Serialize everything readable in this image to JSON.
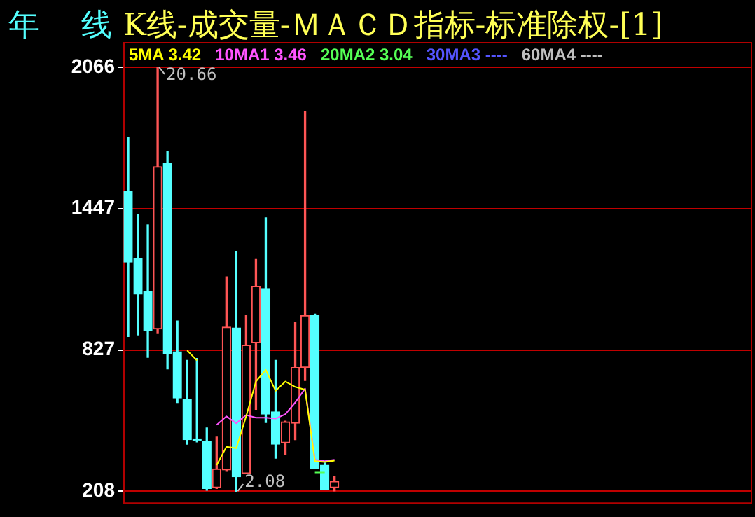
{
  "chart_data": {
    "type": "candlestick",
    "title": "年　线",
    "subtitle": "K线-成交量-ＭＡＣＤ指标-标准除权-[1]",
    "categories": [
      null,
      null,
      null,
      null,
      null,
      null,
      null,
      null,
      null,
      null,
      null,
      null,
      null,
      null,
      null,
      null,
      null,
      null,
      null,
      null,
      null,
      null,
      null,
      null,
      null,
      null,
      null,
      null,
      null,
      null,
      null,
      null,
      null,
      null,
      null,
      null,
      null,
      null,
      null,
      null,
      null,
      null,
      null,
      null,
      null,
      null,
      null,
      null,
      null,
      null,
      null,
      null,
      null,
      null,
      null,
      null,
      null,
      null,
      null,
      null,
      null,
      null,
      null,
      null
    ],
    "ohlc": [
      [
        1520,
        1759,
        886,
        1212
      ],
      [
        1229,
        1422,
        893,
        1072
      ],
      [
        1082,
        1375,
        795,
        913
      ],
      [
        919,
        2066,
        899,
        1630
      ],
      [
        1644,
        1697,
        744,
        809
      ],
      [
        819,
        954,
        597,
        617
      ],
      [
        611,
        781,
        414,
        434
      ],
      [
        438,
        790,
        424,
        430
      ],
      [
        428,
        485,
        212,
        220
      ],
      [
        224,
        445,
        220,
        306
      ],
      [
        301,
        1147,
        295,
        927
      ],
      [
        923,
        1259,
        208,
        271
      ],
      [
        286,
        978,
        286,
        848
      ],
      [
        858,
        1223,
        567,
        1106
      ],
      [
        1096,
        1406,
        509,
        546
      ],
      [
        556,
        781,
        353,
        414
      ],
      [
        420,
        515,
        367,
        512
      ],
      [
        506,
        948,
        434,
        750
      ],
      [
        750,
        1870,
        693,
        978
      ],
      [
        978,
        984,
        306,
        306
      ],
      [
        322,
        332,
        216,
        216
      ],
      [
        224,
        271,
        209,
        251
      ],
      null,
      null,
      null,
      null,
      null,
      null,
      null,
      null,
      null,
      null,
      null,
      null,
      null,
      null,
      null,
      null,
      null,
      null,
      null,
      null,
      null,
      null,
      null,
      null,
      null,
      null,
      null,
      null,
      null,
      null,
      null,
      null,
      null,
      null,
      null,
      null,
      null,
      null,
      null,
      null,
      null,
      null
    ],
    "series": [
      {
        "name": "5MA 3.42",
        "type": "line",
        "color": "#ffff00",
        "values": [
          null,
          null,
          null,
          null,
          null,
          null,
          825,
          781,
          null,
          322,
          403,
          397,
          536,
          689,
          740,
          648,
          689,
          665,
          653,
          340,
          336,
          342,
          null,
          null,
          null,
          null,
          null,
          null,
          null,
          null,
          null,
          null,
          null,
          null,
          null,
          null,
          null,
          null,
          null,
          null,
          null,
          null,
          null,
          null,
          null,
          null,
          null,
          null,
          null,
          null,
          null,
          null,
          null,
          null,
          null,
          null,
          null,
          null,
          null,
          null,
          null,
          null,
          null,
          null
        ]
      },
      {
        "name": "10MA1 3.46",
        "type": "line",
        "color": "#ff55ff",
        "values": [
          null,
          null,
          null,
          null,
          null,
          null,
          null,
          null,
          null,
          499,
          536,
          506,
          542,
          530,
          530,
          526,
          546,
          597,
          658,
          346,
          340,
          346,
          null,
          null,
          null,
          null,
          null,
          null,
          null,
          null,
          null,
          null,
          null,
          null,
          null,
          null,
          null,
          null,
          null,
          null,
          null,
          null,
          null,
          null,
          null,
          null,
          null,
          null,
          null,
          null,
          null,
          null,
          null,
          null,
          null,
          null,
          null,
          null,
          null,
          null,
          null,
          null,
          null,
          null
        ]
      },
      {
        "name": "20MA2 3.04",
        "type": "line",
        "color": "#55ff55",
        "values": [
          null,
          null,
          null,
          null,
          null,
          null,
          null,
          null,
          null,
          null,
          null,
          null,
          null,
          null,
          null,
          null,
          null,
          null,
          null,
          290,
          290,
          null,
          null,
          null,
          null,
          null,
          null,
          null,
          null,
          null,
          null,
          null,
          null,
          null,
          null,
          null,
          null,
          null,
          null,
          null,
          null,
          null,
          null,
          null,
          null,
          null,
          null,
          null,
          null,
          null,
          null,
          null,
          null,
          null,
          null,
          null,
          null,
          null,
          null,
          null,
          null,
          null,
          null,
          null
        ]
      },
      {
        "name": "30MA3 ----",
        "type": "line",
        "color": "#5555ff",
        "values": [
          null,
          null,
          null,
          null,
          null,
          null,
          null,
          null,
          null,
          null,
          null,
          null,
          null,
          null,
          null,
          null,
          null,
          null,
          null,
          null,
          null,
          null,
          null,
          null,
          null,
          null,
          null,
          null,
          null,
          null,
          null,
          null,
          null,
          null,
          null,
          null,
          null,
          null,
          null,
          null,
          null,
          null,
          null,
          null,
          null,
          null,
          null,
          null,
          null,
          null,
          null,
          null,
          null,
          null,
          null,
          null,
          null,
          null,
          null,
          null,
          null,
          null,
          null,
          null
        ]
      },
      {
        "name": "60MA4 ----",
        "type": "line",
        "color": "#c0c0c0",
        "values": [
          null,
          null,
          null,
          null,
          null,
          null,
          null,
          null,
          null,
          null,
          null,
          null,
          null,
          null,
          null,
          null,
          null,
          null,
          null,
          null,
          null,
          null,
          null,
          null,
          null,
          null,
          null,
          null,
          null,
          null,
          null,
          null,
          null,
          null,
          null,
          null,
          null,
          null,
          null,
          null,
          null,
          null,
          null,
          null,
          null,
          null,
          null,
          null,
          null,
          null,
          null,
          null,
          null,
          null,
          null,
          null,
          null,
          null,
          null,
          null,
          null,
          null,
          null,
          null
        ]
      }
    ],
    "ylim": [
      159,
      2176
    ],
    "yticks": [
      208,
      827,
      1447,
      2066
    ],
    "annotations": [
      "20.66",
      "2.08"
    ],
    "grid": "y",
    "legend": "top left",
    "tick_labels": "y",
    "marker": "none"
  }
}
